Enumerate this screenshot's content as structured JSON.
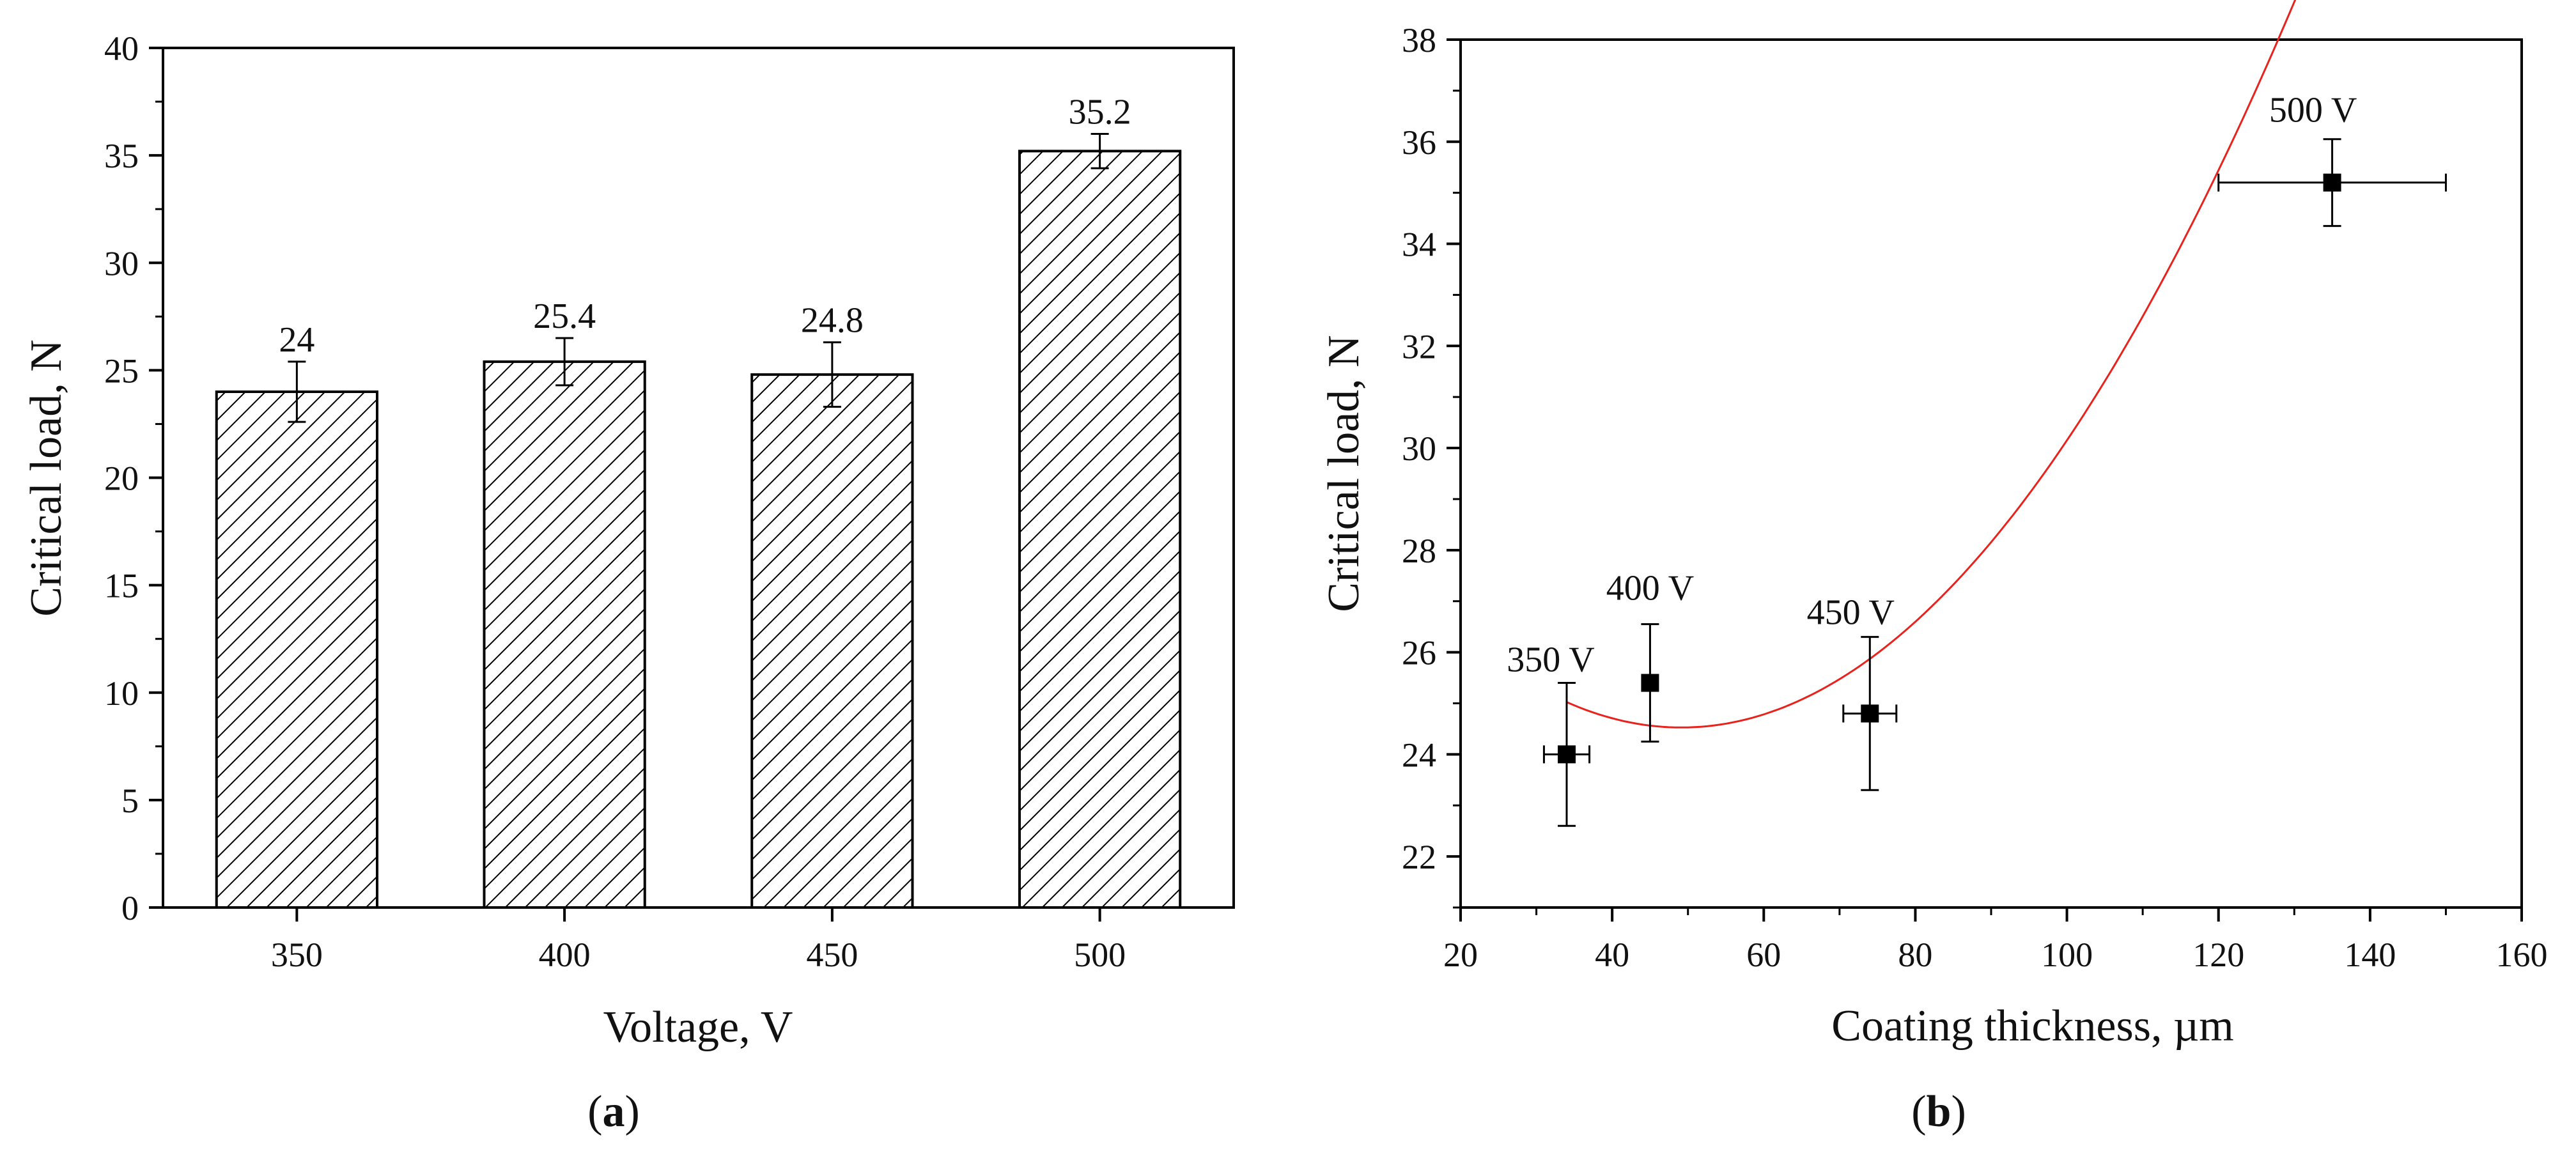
{
  "chart_data": [
    {
      "type": "bar",
      "panel_label": "a",
      "title": "",
      "xlabel": "Voltage, V",
      "ylabel": "Critical load, N",
      "categories": [
        "350",
        "400",
        "450",
        "500"
      ],
      "values": [
        24,
        25.4,
        24.8,
        35.2
      ],
      "value_labels": [
        "24",
        "25.4",
        "24.8",
        "35.2"
      ],
      "errors": [
        1.4,
        1.1,
        1.5,
        0.8
      ],
      "ylim": [
        0,
        40
      ],
      "yticks": [
        0,
        5,
        10,
        15,
        20,
        25,
        30,
        35,
        40
      ],
      "ytick_labels": [
        "0",
        "5",
        "10",
        "15",
        "20",
        "25",
        "30",
        "35",
        "40"
      ],
      "bar_fill": "diagonal-hatch",
      "grid": false
    },
    {
      "type": "scatter",
      "panel_label": "b",
      "title": "",
      "xlabel": "Coating thickness, µm",
      "ylabel": "Critical load, N",
      "points": [
        {
          "label": "350 V",
          "x": 34,
          "y": 24.0,
          "xerr": 3,
          "yerr": 1.4
        },
        {
          "label": "400 V",
          "x": 45,
          "y": 25.4,
          "xerr": 0,
          "yerr": 1.15
        },
        {
          "label": "450 V",
          "x": 74,
          "y": 24.8,
          "xerr": 3.5,
          "yerr": 1.5
        },
        {
          "label": "500 V",
          "x": 135,
          "y": 35.2,
          "xerr": 15,
          "yerr": 0.85
        }
      ],
      "fit_curve": {
        "type": "quadratic",
        "x_range": [
          34,
          135
        ],
        "coefficients": [
          0.002173,
          -0.2135,
          29.77
        ],
        "color": "#e8231d"
      },
      "xlim": [
        20,
        160
      ],
      "ylim": [
        21,
        38
      ],
      "xticks": [
        20,
        40,
        60,
        80,
        100,
        120,
        140,
        160
      ],
      "xtick_labels": [
        "20",
        "40",
        "60",
        "80",
        "100",
        "120",
        "140",
        "160"
      ],
      "yticks": [
        22,
        24,
        26,
        28,
        30,
        32,
        34,
        36,
        38
      ],
      "ytick_labels": [
        "22",
        "24",
        "26",
        "28",
        "30",
        "32",
        "34",
        "36",
        "38"
      ],
      "marker_color": "#000000",
      "grid": false
    }
  ],
  "captions": {
    "a": {
      "open": "(",
      "letter": "a",
      "close": ")"
    },
    "b": {
      "open": "(",
      "letter": "b",
      "close": ")"
    }
  }
}
